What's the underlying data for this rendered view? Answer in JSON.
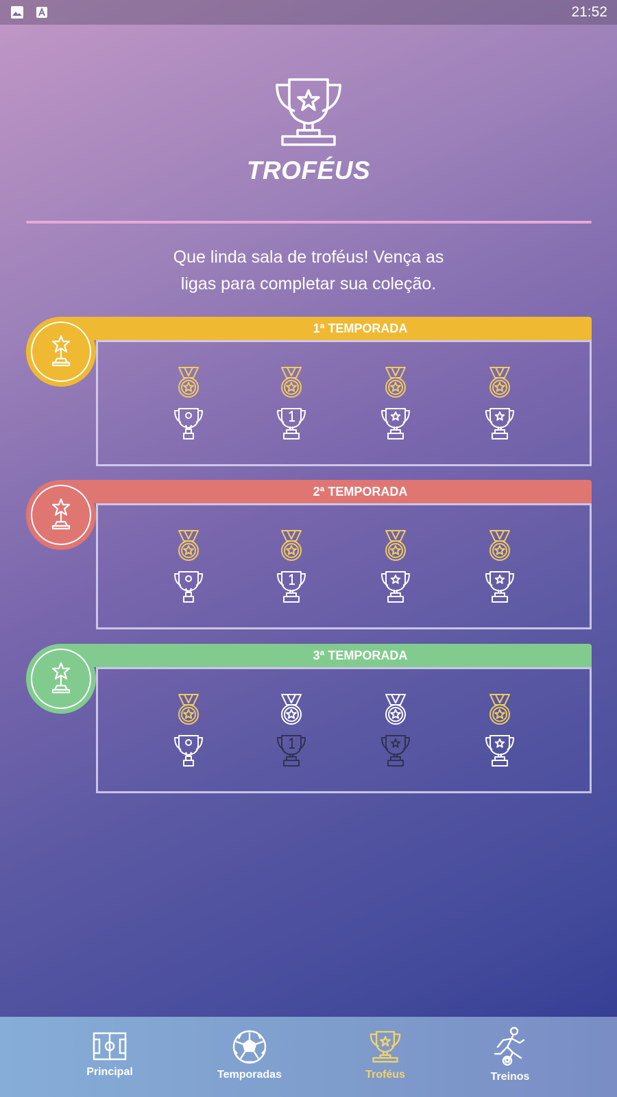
{
  "status_bar": {
    "time": "21:52",
    "icons": [
      "image-icon",
      "text-a-icon"
    ]
  },
  "header": {
    "title": "TROFÉUS",
    "subtitle_line1": "Que linda sala de troféus! Vença as",
    "subtitle_line2": "ligas para completar sua coleção."
  },
  "colors": {
    "season1": "#f0b932",
    "season2": "#e07672",
    "season3": "#82cb8f",
    "gold": "#f1cc5a",
    "earned": "#ffffff",
    "locked": "#2e3350",
    "nav_active": "#f3d36a",
    "divider": "#e6a9d8"
  },
  "seasons": [
    {
      "label": "1ª TEMPORADA",
      "medals": [
        "gold",
        "gold",
        "gold",
        "gold"
      ],
      "cups": [
        "earned",
        "earned",
        "earned",
        "earned"
      ]
    },
    {
      "label": "2ª TEMPORADA",
      "medals": [
        "gold",
        "gold",
        "gold",
        "gold"
      ],
      "cups": [
        "earned",
        "earned",
        "earned",
        "earned"
      ]
    },
    {
      "label": "3ª TEMPORADA",
      "medals": [
        "gold",
        "silver",
        "silver",
        "gold"
      ],
      "cups": [
        "earned",
        "locked",
        "locked",
        "earned"
      ]
    }
  ],
  "nav": {
    "items": [
      {
        "label": "Principal",
        "icon": "soccer-field-icon"
      },
      {
        "label": "Temporadas",
        "icon": "soccer-ball-icon"
      },
      {
        "label": "Troféus",
        "icon": "trophy-icon",
        "active": true
      },
      {
        "label": "Treinos",
        "icon": "player-kicking-icon"
      }
    ]
  }
}
